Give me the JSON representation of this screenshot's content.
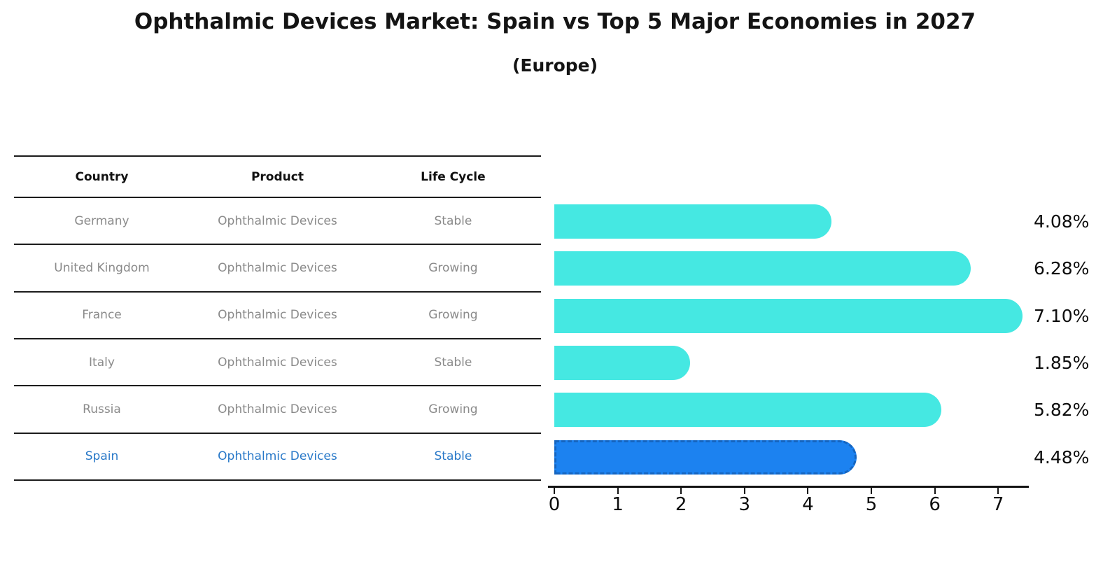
{
  "title": "Ophthalmic Devices Market: Spain vs Top 5 Major Economies in 2027",
  "subtitle": "(Europe)",
  "table": {
    "headers": {
      "country": "Country",
      "product": "Product",
      "life_cycle": "Life Cycle"
    },
    "rows": [
      {
        "country": "Germany",
        "product": "Ophthalmic Devices",
        "life_cycle": "Stable",
        "highlight": false
      },
      {
        "country": "United Kingdom",
        "product": "Ophthalmic Devices",
        "life_cycle": "Growing",
        "highlight": false
      },
      {
        "country": "France",
        "product": "Ophthalmic Devices",
        "life_cycle": "Growing",
        "highlight": false
      },
      {
        "country": "Italy",
        "product": "Ophthalmic Devices",
        "life_cycle": "Stable",
        "highlight": false
      },
      {
        "country": "Russia",
        "product": "Ophthalmic Devices",
        "life_cycle": "Growing",
        "highlight": false
      },
      {
        "country": "Spain",
        "product": "Ophthalmic Devices",
        "life_cycle": "Stable",
        "highlight": true
      }
    ]
  },
  "chart_data": {
    "type": "bar",
    "orientation": "horizontal",
    "title": "Ophthalmic Devices Market: Spain vs Top 5 Major Economies in 2027",
    "subtitle": "(Europe)",
    "categories": [
      "Germany",
      "United Kingdom",
      "France",
      "Italy",
      "Russia",
      "Spain"
    ],
    "values": [
      4.08,
      6.28,
      7.1,
      1.85,
      5.82,
      4.48
    ],
    "value_labels": [
      "4.08%",
      "6.28%",
      "7.10%",
      "1.85%",
      "5.82%",
      "4.48%"
    ],
    "x_ticks": [
      0,
      1,
      2,
      3,
      4,
      5,
      6,
      7
    ],
    "xlim": [
      0,
      7.5
    ],
    "grid": false,
    "legend": false,
    "highlight_index": 5,
    "bar_color": "#45e8e2",
    "highlight_bar_color": "#1c82f0",
    "highlight_border_color": "#1565c0",
    "highlight_text_color": "#2878c8",
    "text_color": "#8a8a8a",
    "axis_color": "#141414"
  }
}
